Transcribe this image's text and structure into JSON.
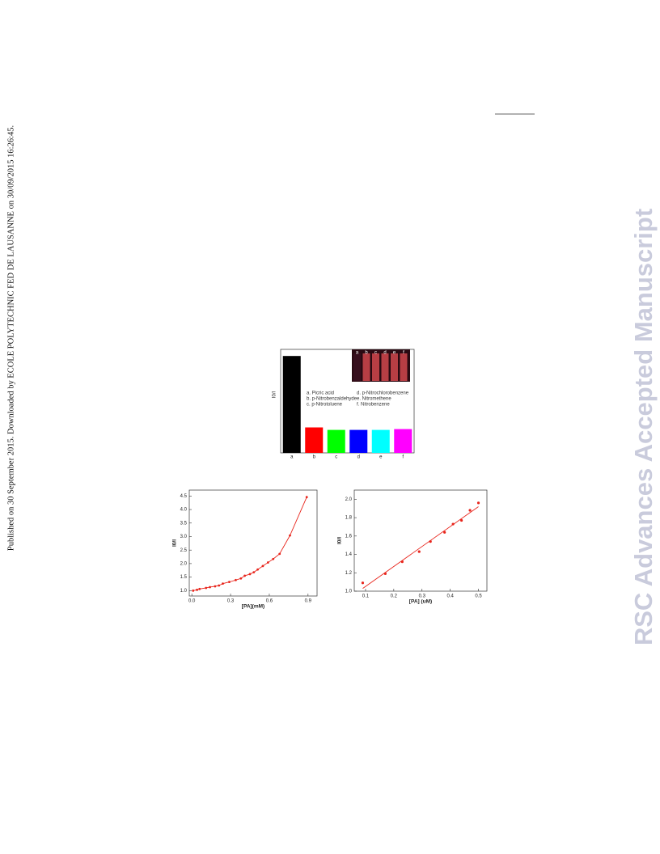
{
  "sidebar": "Published on 30 September 2015. Downloaded by ECOLE POLYTECHNIC FED DE LAUSANNE on 30/09/2015 16:26:45.",
  "watermark": "RSC Advances Accepted Manuscript",
  "chart_data": [
    {
      "type": "bar",
      "y_label": "I0/I",
      "categories": [
        "a",
        "b",
        "c",
        "d",
        "e",
        "f"
      ],
      "values": [
        4.68,
        1.23,
        1.11,
        1.11,
        1.11,
        1.15
      ],
      "colors": [
        "#000000",
        "#ff0000",
        "#00ff00",
        "#0000ff",
        "#00ffff",
        "#ff00ff"
      ],
      "ylim": [
        0,
        5
      ],
      "legend_items": [
        "a. Picric acid",
        "b. p-Nitrobenzaldehyde",
        "c. p-Nitrotoluene",
        "d. p-Nitrochlorobenzene",
        "e. Nitromethene",
        "f. Nitrobenzene"
      ]
    },
    {
      "type": "line",
      "x_label": "[PA](mM)",
      "y_label": "I0/I",
      "color": "#e8251c",
      "x": [
        0.01,
        0.04,
        0.06,
        0.11,
        0.14,
        0.18,
        0.21,
        0.24,
        0.29,
        0.34,
        0.38,
        0.41,
        0.45,
        0.48,
        0.51,
        0.55,
        0.59,
        0.63,
        0.68,
        0.76,
        0.89
      ],
      "values": [
        1.0,
        1.03,
        1.06,
        1.1,
        1.13,
        1.16,
        1.19,
        1.26,
        1.32,
        1.39,
        1.45,
        1.55,
        1.61,
        1.68,
        1.78,
        1.91,
        2.04,
        2.17,
        2.36,
        3.04,
        4.46
      ],
      "xlim": [
        -0.02,
        0.97
      ],
      "ylim": [
        0.8,
        4.72
      ],
      "xticks": [
        {
          "value": 0,
          "label": "0.0"
        },
        0.3,
        0.6,
        0.9
      ],
      "yticks": [
        {
          "value": 1,
          "label": "1.0"
        },
        1.5,
        {
          "value": 2,
          "label": "2.0"
        },
        2.5,
        {
          "value": 3,
          "label": "3.0"
        },
        3.5,
        {
          "value": 4,
          "label": "4.0"
        },
        4.5
      ]
    },
    {
      "type": "scatter",
      "x_label": "[PA] (uM)",
      "y_label": "I0/I",
      "color": "#e8251c",
      "x": [
        0.09,
        0.17,
        0.23,
        0.29,
        0.33,
        0.38,
        0.41,
        0.44,
        0.47,
        0.5
      ],
      "values": [
        1.09,
        1.19,
        1.32,
        1.43,
        1.54,
        1.64,
        1.73,
        1.77,
        1.88,
        1.96
      ],
      "fit": {
        "x": [
          0.09,
          0.5
        ],
        "values": [
          1.03,
          1.92
        ]
      },
      "xlim": [
        0.06,
        0.53
      ],
      "ylim": [
        1.0,
        2.1
      ],
      "xticks": [
        0.1,
        0.2,
        0.3,
        0.4,
        0.5
      ],
      "yticks": [
        {
          "value": 1,
          "label": "1.0"
        },
        1.2,
        1.4,
        1.6,
        1.8,
        {
          "value": 2,
          "label": "2.0"
        }
      ]
    }
  ]
}
